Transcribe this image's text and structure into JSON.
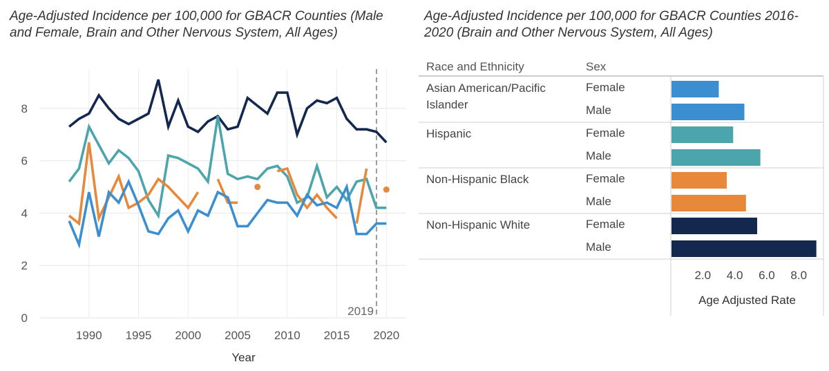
{
  "line_chart_title": "Age-Adjusted Incidence per 100,000 for GBACR Counties (Male and Female, Brain and Other Nervous System, All Ages)",
  "bar_chart_title": "Age-Adjusted Incidence per 100,000 for GBACR Counties 2016-2020 (Brain and Other Nervous System, All Ages)",
  "chart_data": [
    {
      "type": "line",
      "title": "Age-Adjusted Incidence per 100,000 for GBACR Counties (Male and Female, Brain and Other Nervous System, All Ages)",
      "xlabel": "Year",
      "ylabel": "",
      "xlim": [
        1985,
        2022
      ],
      "ylim": [
        0,
        9.5
      ],
      "xticks": [
        1990,
        1995,
        2000,
        2005,
        2010,
        2015,
        2020
      ],
      "yticks": [
        0,
        2,
        4,
        6,
        8
      ],
      "grid": true,
      "reference_line": {
        "x": 2019,
        "label": "2019"
      },
      "x": [
        1988,
        1989,
        1990,
        1991,
        1992,
        1993,
        1994,
        1995,
        1996,
        1997,
        1998,
        1999,
        2000,
        2001,
        2002,
        2003,
        2004,
        2005,
        2006,
        2007,
        2008,
        2009,
        2010,
        2011,
        2012,
        2013,
        2014,
        2015,
        2016,
        2017,
        2018,
        2019,
        2020
      ],
      "series": [
        {
          "name": "Non-Hispanic White",
          "color": "#14284f",
          "values": [
            7.3,
            7.6,
            7.8,
            8.5,
            8.0,
            7.6,
            7.4,
            7.6,
            7.8,
            9.1,
            7.3,
            8.3,
            7.3,
            7.1,
            7.5,
            7.7,
            7.2,
            7.3,
            8.4,
            8.1,
            7.8,
            8.6,
            8.6,
            7.0,
            8.0,
            8.3,
            8.2,
            8.4,
            7.6,
            7.2,
            7.2,
            7.1,
            6.7
          ]
        },
        {
          "name": "Hispanic",
          "color": "#4ca5ad",
          "values": [
            5.2,
            5.7,
            7.3,
            6.6,
            5.9,
            6.4,
            6.1,
            5.6,
            4.5,
            3.9,
            6.2,
            6.1,
            5.9,
            5.7,
            5.2,
            7.7,
            5.5,
            5.3,
            5.4,
            5.3,
            5.7,
            5.8,
            5.4,
            4.4,
            4.6,
            5.8,
            4.6,
            5.0,
            4.5,
            5.2,
            5.3,
            4.2,
            4.2
          ]
        },
        {
          "name": "Non-Hispanic Black",
          "color": "#e8883a",
          "values": [
            3.9,
            3.6,
            6.7,
            3.8,
            4.6,
            5.4,
            4.2,
            4.4,
            4.7,
            5.3,
            5.0,
            4.6,
            4.2,
            4.8,
            null,
            5.3,
            4.4,
            4.4,
            null,
            5.0,
            null,
            5.6,
            5.7,
            4.7,
            4.2,
            4.7,
            4.2,
            3.8,
            null,
            3.6,
            5.7,
            null,
            4.9
          ]
        },
        {
          "name": "Asian American/Pacific Islander",
          "color": "#3b8fd0",
          "values": [
            3.7,
            2.8,
            4.8,
            3.1,
            4.8,
            4.4,
            5.2,
            4.3,
            3.3,
            3.2,
            3.8,
            4.1,
            3.3,
            4.1,
            3.9,
            4.8,
            4.6,
            3.5,
            3.5,
            4.0,
            4.5,
            4.4,
            4.4,
            3.9,
            4.7,
            4.3,
            4.4,
            4.2,
            5.0,
            3.2,
            3.2,
            3.6,
            3.6
          ]
        }
      ]
    },
    {
      "type": "bar",
      "orientation": "horizontal",
      "title": "Age-Adjusted Incidence per 100,000 for GBACR Counties 2016-2020 (Brain and Other Nervous System, All Ages)",
      "column_headers": [
        "Race and Ethnicity",
        "Sex"
      ],
      "xlabel": "Age Adjusted Rate",
      "xlim": [
        0,
        9.2
      ],
      "xticks": [
        "2.0",
        "4.0",
        "6.0",
        "8.0"
      ],
      "groups": [
        {
          "name": "Asian American/Pacific Islander",
          "color": "#3b8fd0",
          "bars": [
            {
              "sex": "Female",
              "value": 3.0
            },
            {
              "sex": "Male",
              "value": 4.6
            }
          ]
        },
        {
          "name": "Hispanic",
          "color": "#4ca5ad",
          "bars": [
            {
              "sex": "Female",
              "value": 3.9
            },
            {
              "sex": "Male",
              "value": 5.6
            }
          ]
        },
        {
          "name": "Non-Hispanic Black",
          "color": "#e8883a",
          "bars": [
            {
              "sex": "Female",
              "value": 3.5
            },
            {
              "sex": "Male",
              "value": 4.7
            }
          ]
        },
        {
          "name": "Non-Hispanic White",
          "color": "#14284f",
          "bars": [
            {
              "sex": "Female",
              "value": 5.4
            },
            {
              "sex": "Male",
              "value": 9.1
            }
          ]
        }
      ]
    }
  ]
}
